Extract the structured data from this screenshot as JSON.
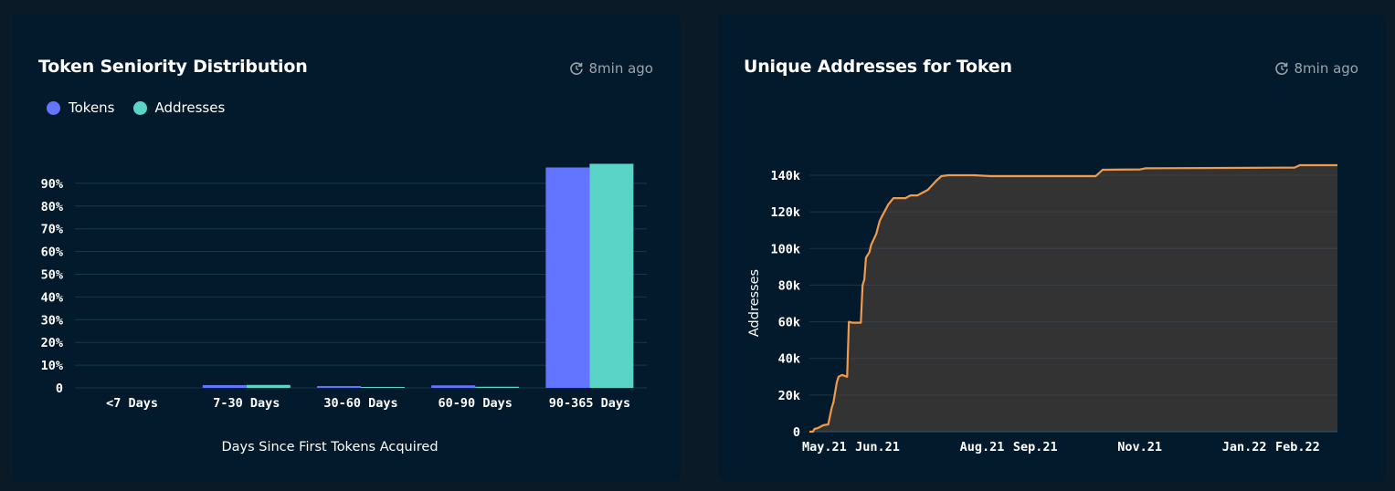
{
  "cards": [
    {
      "title": "Token Seniority Distribution",
      "updated": "8min ago",
      "icon": "refresh-clock-icon"
    },
    {
      "title": "Unique Addresses for Token",
      "updated": "8min ago",
      "icon": "refresh-clock-icon"
    }
  ],
  "colors": {
    "tokens": "#6375ff",
    "addresses": "#5bd4c8",
    "line": "#f39a4a",
    "area": "#333333",
    "grid": "#16384c"
  },
  "chart_data": [
    {
      "type": "bar",
      "title": "Token Seniority Distribution",
      "categories": [
        "<7 Days",
        "7-30 Days",
        "30-60 Days",
        "60-90 Days",
        "90-365 Days"
      ],
      "series": [
        {
          "name": "Tokens",
          "values": [
            0,
            1.2,
            0.8,
            1.1,
            97
          ]
        },
        {
          "name": "Addresses",
          "values": [
            0,
            1.3,
            0.4,
            0.5,
            98.6
          ]
        }
      ],
      "yticks": [
        "0",
        "10%",
        "20%",
        "30%",
        "40%",
        "50%",
        "60%",
        "70%",
        "80%",
        "90%"
      ],
      "ylim": [
        0,
        100
      ],
      "xlabel": "Days Since First Tokens Acquired",
      "ylabel": "",
      "legend": "top-left",
      "grid": true
    },
    {
      "type": "area",
      "title": "Unique Addresses for Token",
      "xlabel": "",
      "ylabel": "Addresses",
      "yticks": [
        "0",
        "20k",
        "40k",
        "60k",
        "80k",
        "100k",
        "120k",
        "140k"
      ],
      "ylim": [
        0,
        150000
      ],
      "xticks": [
        {
          "label": "May.21",
          "date": "2021-05-01"
        },
        {
          "label": "Jun.21",
          "date": "2021-06-01"
        },
        {
          "label": "Aug.21",
          "date": "2021-08-01"
        },
        {
          "label": "Sep.21",
          "date": "2021-09-01"
        },
        {
          "label": "Nov.21",
          "date": "2021-11-01"
        },
        {
          "label": "Jan.22",
          "date": "2022-01-01"
        },
        {
          "label": "Feb.22",
          "date": "2022-02-01"
        }
      ],
      "grid": true,
      "points": [
        [
          "2021-05-01",
          0
        ],
        [
          "2021-05-03",
          0
        ],
        [
          "2021-05-04",
          1500
        ],
        [
          "2021-05-06",
          2000
        ],
        [
          "2021-05-09",
          3500
        ],
        [
          "2021-05-12",
          4000
        ],
        [
          "2021-05-14",
          13000
        ],
        [
          "2021-05-15",
          16000
        ],
        [
          "2021-05-17",
          27000
        ],
        [
          "2021-05-18",
          30000
        ],
        [
          "2021-05-20",
          31000
        ],
        [
          "2021-05-23",
          30000
        ],
        [
          "2021-05-24",
          60000
        ],
        [
          "2021-05-26",
          59500
        ],
        [
          "2021-05-31",
          59500
        ],
        [
          "2021-06-01",
          80000
        ],
        [
          "2021-06-02",
          83000
        ],
        [
          "2021-06-03",
          95000
        ],
        [
          "2021-06-05",
          98000
        ],
        [
          "2021-06-06",
          102000
        ],
        [
          "2021-06-09",
          108000
        ],
        [
          "2021-06-11",
          115000
        ],
        [
          "2021-06-12",
          117000
        ],
        [
          "2021-06-16",
          124000
        ],
        [
          "2021-06-19",
          127500
        ],
        [
          "2021-06-26",
          127500
        ],
        [
          "2021-06-29",
          129000
        ],
        [
          "2021-07-03",
          129000
        ],
        [
          "2021-07-07",
          131000
        ],
        [
          "2021-07-09",
          132000
        ],
        [
          "2021-07-14",
          137000
        ],
        [
          "2021-07-17",
          139500
        ],
        [
          "2021-07-21",
          140000
        ],
        [
          "2021-08-05",
          140000
        ],
        [
          "2021-08-15",
          139500
        ],
        [
          "2021-09-20",
          139500
        ],
        [
          "2021-10-15",
          139500
        ],
        [
          "2021-10-19",
          143000
        ],
        [
          "2021-11-10",
          143200
        ],
        [
          "2021-11-13",
          143800
        ],
        [
          "2021-12-31",
          144000
        ],
        [
          "2022-02-08",
          144200
        ],
        [
          "2022-02-11",
          145500
        ],
        [
          "2022-03-05",
          145500
        ]
      ]
    }
  ]
}
